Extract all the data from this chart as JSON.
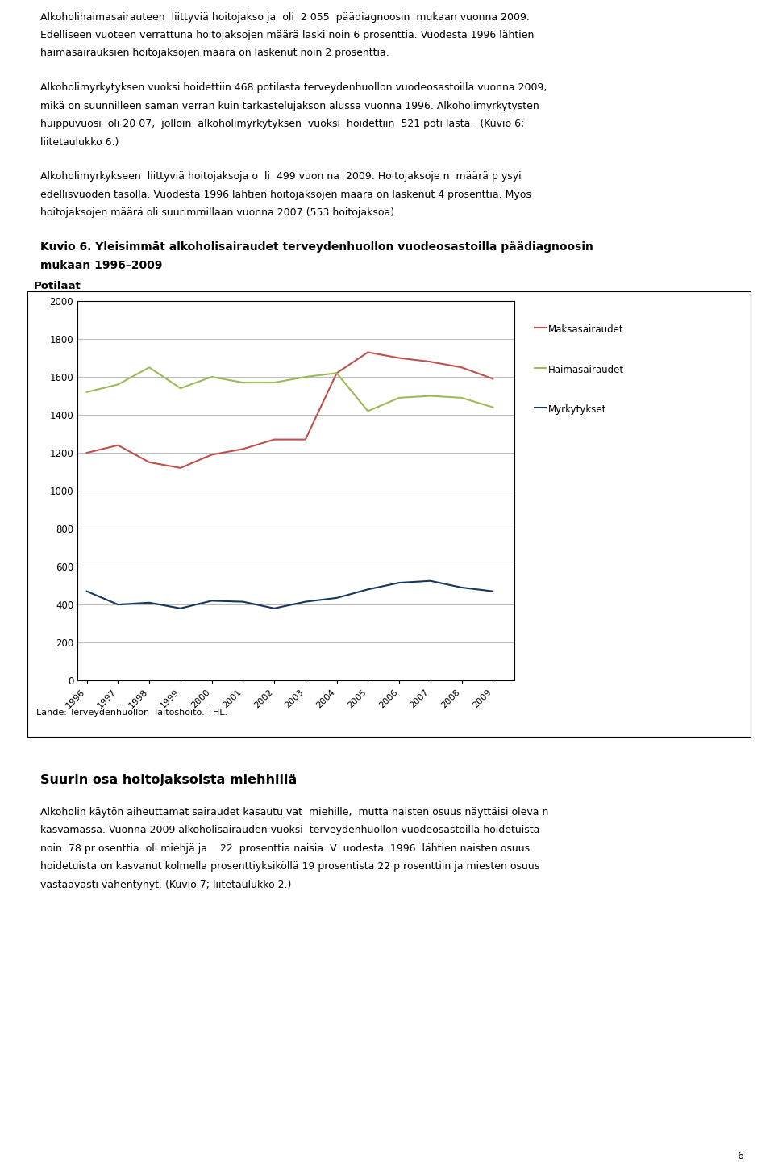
{
  "years": [
    1996,
    1997,
    1998,
    1999,
    2000,
    2001,
    2002,
    2003,
    2004,
    2005,
    2006,
    2007,
    2008,
    2009
  ],
  "maksasairaudet": [
    1200,
    1240,
    1150,
    1120,
    1190,
    1220,
    1270,
    1270,
    1620,
    1730,
    1700,
    1680,
    1650,
    1590
  ],
  "haimasairaudet": [
    1520,
    1560,
    1650,
    1540,
    1600,
    1570,
    1570,
    1600,
    1620,
    1420,
    1490,
    1500,
    1490,
    1440
  ],
  "myrkytykset": [
    470,
    400,
    410,
    380,
    420,
    415,
    380,
    415,
    435,
    480,
    515,
    525,
    490,
    470
  ],
  "maksasairaudet_color": "#c0504d",
  "haimasairaudet_color": "#9bbb59",
  "myrkytykset_color": "#17375e",
  "title_line1": "Kuvio 6. Yleisimmät alkoholisairaudet terveydenhuollon vuodeosastoilla päädiagnoosin",
  "title_line2": "mukaan 1996–2009",
  "ylabel": "Potilaat",
  "ylim": [
    0,
    2000
  ],
  "yticks": [
    0,
    200,
    400,
    600,
    800,
    1000,
    1200,
    1400,
    1600,
    1800,
    2000
  ],
  "legend_labels": [
    "Maksasairaudet",
    "Haimasairaudet",
    "Myrkytykset"
  ],
  "source_text": "Lähde: Terveydenhuollon  laitoshoito. THL.",
  "para1_lines": [
    "Alkoholihaimasairauteen  liittyviä hoitojakso ja  oli  2 055  päädiagnoosin  mukaan vuonna 2009.",
    "Edelliseen vuoteen verrattuna hoitojaksojen määrä laski noin 6 prosenttia. Vuodesta 1996 lähtien",
    "haimasairauksien hoitojaksojen määrä on laskenut noin 2 prosenttia."
  ],
  "para2_lines": [
    "Alkoholimyrkytyksen vuoksi hoidettiin 468 potilasta terveydenhuollon vuodeosastoilla vuonna 2009,",
    "mikä on suunnilleen saman verran kuin tarkastelujakson alussa vuonna 1996. Alkoholimyrkytysten",
    "huippuvuosi  oli 20 07,  jolloin  alkoholimyrkytyksen  vuoksi  hoidettiin  521 poti lasta.  (Kuvio 6;",
    "liitetaulukko 6.)"
  ],
  "para3_lines": [
    "Alkoholimyrkykseen  liittyviä hoitojaksoja o  li  499 vuon na  2009. Hoitojaksoje n  määrä p ysyi",
    "edellisvuoden tasolla. Vuodesta 1996 lähtien hoitojaksojen määrä on laskenut 4 prosenttia. Myös",
    "hoitojaksojen määrä oli suurimmillaan vuonna 2007 (553 hoitojaksoa)."
  ],
  "heading2": "Suurin osa hoitojaksoista miehhillä",
  "para4_lines": [
    "Alkoholin käytön aiheuttamat sairaudet kasautu vat  miehille,  mutta naisten osuus näyttäisi oleva n",
    "kasvamassa. Vuonna 2009 alkoholisairauden vuoksi  terveydenhuollon vuodeosastoilla hoidetuista",
    "noin  78 pr osenttia  oli miehjä ja    22  prosenttia naisia. V  uodesta  1996  lähtien naisten osuus",
    "hoidetuista on kasvanut kolmella prosenttiyksiköllä 19 prosentista 22 p rosenttiin ja miesten osuus",
    "vastaavasti vähentynyt. (Kuvio 7; liitetaulukko 2.)"
  ],
  "page_number": "6",
  "background_color": "#ffffff",
  "chart_bg_color": "#ffffff",
  "grid_color": "#b0b0b0",
  "box_color": "#000000",
  "text_fontsize": 9.0,
  "title_fontsize": 10.0
}
